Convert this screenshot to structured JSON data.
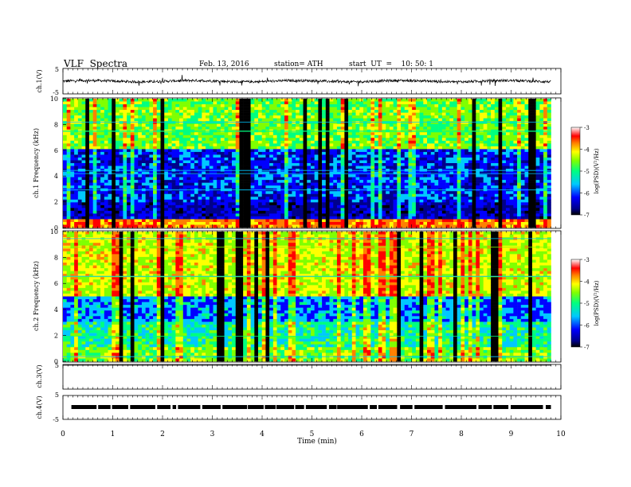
{
  "header": {
    "title": "VLF  Spectra",
    "date": "Feb. 13, 2016",
    "station": "station= ATH",
    "start_ut": "start  UT  =    10: 50: 1"
  },
  "chart_data": [
    {
      "type": "line",
      "panel": "ch1-waveform",
      "ylabel": "ch.1(V)",
      "ylim": [
        -5,
        5
      ],
      "yticks": [
        "5",
        "-5"
      ],
      "xlim": [
        0,
        10
      ],
      "baseline_value": 0.0,
      "noise_amplitude": 0.5
    },
    {
      "type": "heatmap",
      "panel": "ch1-spectrogram",
      "ylabel": "ch.1 Frequency (kHz)",
      "ylim": [
        0,
        10
      ],
      "yticks": [
        "0",
        "2",
        "4",
        "6",
        "8",
        "10"
      ],
      "xlim": [
        0,
        9.8
      ],
      "colorbar": {
        "label": "log(PSD)(V²/Hz)",
        "range": [
          -7,
          -3
        ],
        "ticks": [
          "-3",
          "-4",
          "-5",
          "-6",
          "-7"
        ]
      }
    },
    {
      "type": "heatmap",
      "panel": "ch2-spectrogram",
      "ylabel": "ch.2 Frequency (kHz)",
      "ylim": [
        0,
        10
      ],
      "yticks": [
        "0",
        "2",
        "4",
        "6",
        "8",
        "10"
      ],
      "xlim": [
        0,
        9.8
      ],
      "colorbar": {
        "label": "log(PSD)(V²/Hz)",
        "range": [
          -7,
          -3
        ],
        "ticks": [
          "-3",
          "-4",
          "-5",
          "-6",
          "-7"
        ]
      }
    },
    {
      "type": "line",
      "panel": "ch3-waveform",
      "ylabel": "ch.3(V)",
      "ylim": [
        -5,
        5
      ],
      "yticks": [
        "5"
      ],
      "xlim": [
        0,
        10
      ],
      "baseline_value": 5.0
    },
    {
      "type": "line",
      "panel": "ch4-waveform",
      "ylabel": "ch.4(V)",
      "ylim": [
        -5,
        5
      ],
      "yticks": [
        "5",
        "-5"
      ],
      "xlim": [
        0,
        10
      ],
      "baseline_value": 0.0
    }
  ],
  "xaxis": {
    "label": "Time  (min)",
    "ticks": [
      "0",
      "1",
      "2",
      "3",
      "4",
      "5",
      "6",
      "7",
      "8",
      "9",
      "10"
    ]
  },
  "colors": {
    "colormap": [
      "#000000",
      "#00008b",
      "#0000ff",
      "#00c8ff",
      "#00ff80",
      "#7fff00",
      "#ffff00",
      "#ff8000",
      "#ff0000",
      "#ffffff"
    ]
  }
}
